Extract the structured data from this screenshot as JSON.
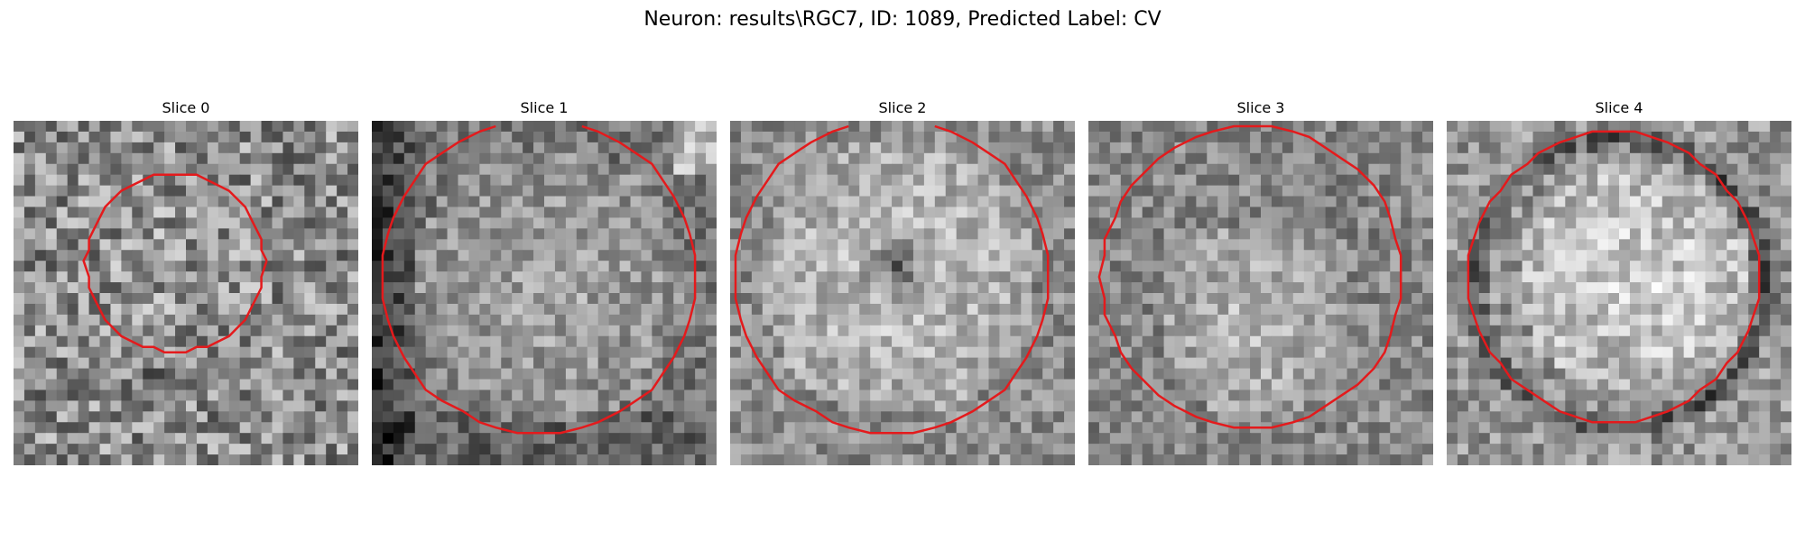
{
  "figure": {
    "title": "Neuron: results\\RGC7, ID: 1089, Predicted Label: CV",
    "contour_color": "#e41a1c"
  },
  "panels": [
    {
      "title": "Slice 0"
    },
    {
      "title": "Slice 1"
    },
    {
      "title": "Slice 2"
    },
    {
      "title": "Slice 3"
    },
    {
      "title": "Slice 4"
    }
  ]
}
